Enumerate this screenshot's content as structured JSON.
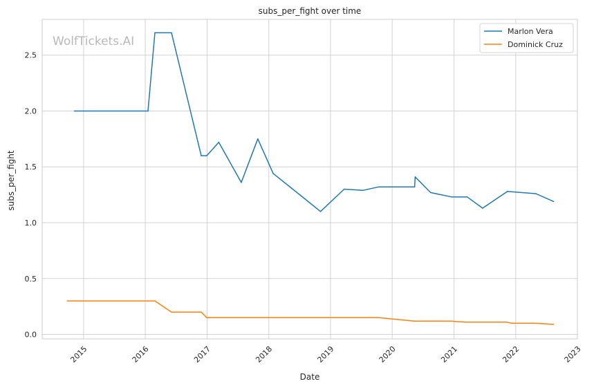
{
  "chart_data": {
    "type": "line",
    "title": "subs_per_fight over time",
    "xlabel": "Date",
    "ylabel": "subs_per_fight",
    "watermark": "WolfTickets.AI",
    "grid": true,
    "legend_position": "top-right",
    "xlim": [
      "2014-05-01",
      "2023-01-01"
    ],
    "ylim": [
      -0.04,
      2.82
    ],
    "x_ticks": [
      {
        "date": "2015-01-01",
        "label": "2015"
      },
      {
        "date": "2016-01-01",
        "label": "2016"
      },
      {
        "date": "2017-01-01",
        "label": "2017"
      },
      {
        "date": "2018-01-01",
        "label": "2018"
      },
      {
        "date": "2019-01-01",
        "label": "2019"
      },
      {
        "date": "2020-01-01",
        "label": "2020"
      },
      {
        "date": "2021-01-01",
        "label": "2021"
      },
      {
        "date": "2022-01-01",
        "label": "2022"
      },
      {
        "date": "2023-01-01",
        "label": "2023"
      }
    ],
    "y_ticks": [
      {
        "value": 0.0,
        "label": "0.0"
      },
      {
        "value": 0.5,
        "label": "0.5"
      },
      {
        "value": 1.0,
        "label": "1.0"
      },
      {
        "value": 1.5,
        "label": "1.5"
      },
      {
        "value": 2.0,
        "label": "2.0"
      },
      {
        "value": 2.5,
        "label": "2.5"
      }
    ],
    "series": [
      {
        "name": "Marlon Vera",
        "color": "#1f77b4",
        "points": [
          [
            "2014-11-08",
            2.0
          ],
          [
            "2016-01-17",
            2.0
          ],
          [
            "2016-02-27",
            2.7
          ],
          [
            "2016-06-04",
            2.7
          ],
          [
            "2016-11-27",
            1.6
          ],
          [
            "2016-12-30",
            1.6
          ],
          [
            "2017-03-11",
            1.72
          ],
          [
            "2017-07-22",
            1.36
          ],
          [
            "2017-10-28",
            1.75
          ],
          [
            "2018-01-27",
            1.44
          ],
          [
            "2018-07-28",
            1.22
          ],
          [
            "2018-11-03",
            1.1
          ],
          [
            "2019-03-23",
            1.3
          ],
          [
            "2019-07-13",
            1.29
          ],
          [
            "2019-10-12",
            1.32
          ],
          [
            "2020-05-13",
            1.32
          ],
          [
            "2020-05-16",
            1.41
          ],
          [
            "2020-08-15",
            1.27
          ],
          [
            "2020-12-19",
            1.23
          ],
          [
            "2021-03-20",
            1.23
          ],
          [
            "2021-06-19",
            1.13
          ],
          [
            "2021-11-13",
            1.28
          ],
          [
            "2022-04-30",
            1.26
          ],
          [
            "2022-08-13",
            1.19
          ]
        ]
      },
      {
        "name": "Dominick Cruz",
        "color": "#ff7f0e",
        "points": [
          [
            "2014-09-27",
            0.3
          ],
          [
            "2016-01-17",
            0.3
          ],
          [
            "2016-02-27",
            0.3
          ],
          [
            "2016-06-04",
            0.2
          ],
          [
            "2016-11-27",
            0.2
          ],
          [
            "2016-12-30",
            0.15
          ],
          [
            "2019-10-12",
            0.15
          ],
          [
            "2020-05-09",
            0.12
          ],
          [
            "2020-12-12",
            0.12
          ],
          [
            "2021-03-06",
            0.11
          ],
          [
            "2021-11-06",
            0.11
          ],
          [
            "2021-12-10",
            0.1
          ],
          [
            "2022-04-30",
            0.1
          ],
          [
            "2022-08-13",
            0.09
          ]
        ]
      }
    ]
  }
}
